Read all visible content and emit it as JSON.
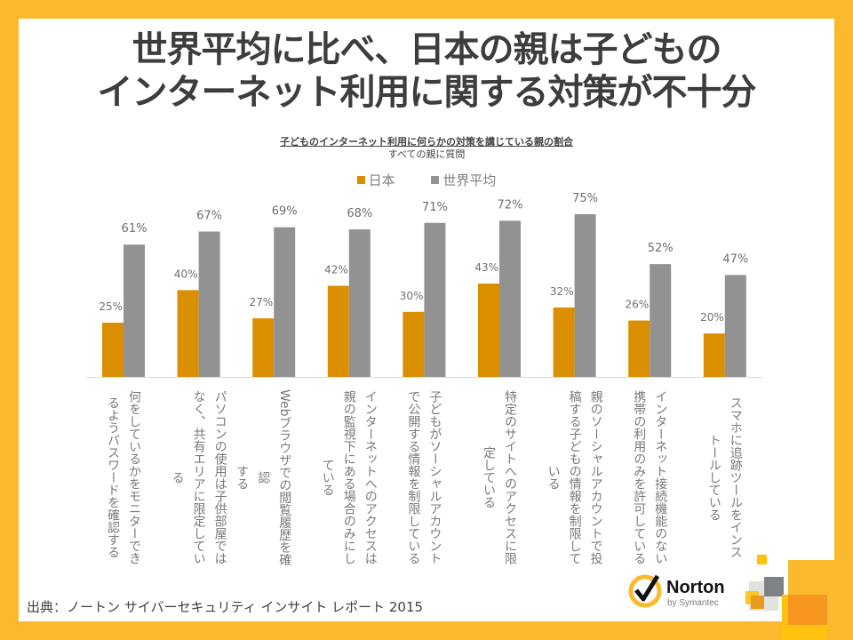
{
  "page": {
    "title_line1": "世界平均に比べ、日本の親は子どもの",
    "title_line2": "インターネット利用に関する対策が不十分",
    "source": "出典：ノートン サイバーセキュリティ インサイト レポート 2015",
    "brand": {
      "name": "Norton",
      "sub": "by Symantec"
    },
    "colors": {
      "border": "#FBBA2E",
      "japan": "#D98F00",
      "world": "#929292",
      "text": "#3d3d3d"
    }
  },
  "chart_data": {
    "type": "bar",
    "title": "子どものインターネット利用に何らかの対策を講じている親の割合",
    "subtitle": "すべての親に質問",
    "xlabel": "",
    "ylabel": "",
    "ylim": [
      0,
      100
    ],
    "grid": false,
    "legend_position": "top",
    "categories": [
      "何をしているかをモニターできるようパスワードを確認する",
      "パソコンの使用は子供部屋ではなく、共有エリアに限定している",
      "Webブラウザでの閲覧履歴を確認する",
      "インターネットへのアクセスは親の監視下にある場合のみにしている",
      "子どもがソーシャルアカウントで公開する情報を制限している",
      "特定のサイトへのアクセスに限定している",
      "親のソーシャルアカウントで投稿する子どもの情報を制限している",
      "インターネット接続機能のない携帯の利用のみを許可している",
      "スマホに追跡ツールをインストールしている"
    ],
    "category_lines": [
      [
        "何をしているかをモニターでき",
        "るようパスワードを確認する"
      ],
      [
        "パソコンの使用は子供部屋では",
        "なく、共有エリアに限定してい",
        "る"
      ],
      [
        "Webブラウザでの閲覧履歴を確認",
        "する"
      ],
      [
        "インターネットへのアクセスは",
        "親の監視下にある場合のみにし",
        "ている"
      ],
      [
        "子どもがソーシャルアカウント",
        "で公開する情報を制限している"
      ],
      [
        "特定のサイトへのアクセスに限",
        "定している"
      ],
      [
        "親のソーシャルアカウントで投",
        "稿する子どもの情報を制限して",
        "いる"
      ],
      [
        "インターネット接続機能のない",
        "携帯の利用のみを許可している"
      ],
      [
        "スマホに追跡ツールをインス",
        "トールしている"
      ]
    ],
    "series": [
      {
        "name": "日本",
        "color": "#D98F00",
        "values": [
          25,
          40,
          27,
          42,
          30,
          43,
          32,
          26,
          20
        ]
      },
      {
        "name": "世界平均",
        "color": "#929292",
        "values": [
          61,
          67,
          69,
          68,
          71,
          72,
          75,
          52,
          47
        ]
      }
    ],
    "value_suffix": "%"
  }
}
